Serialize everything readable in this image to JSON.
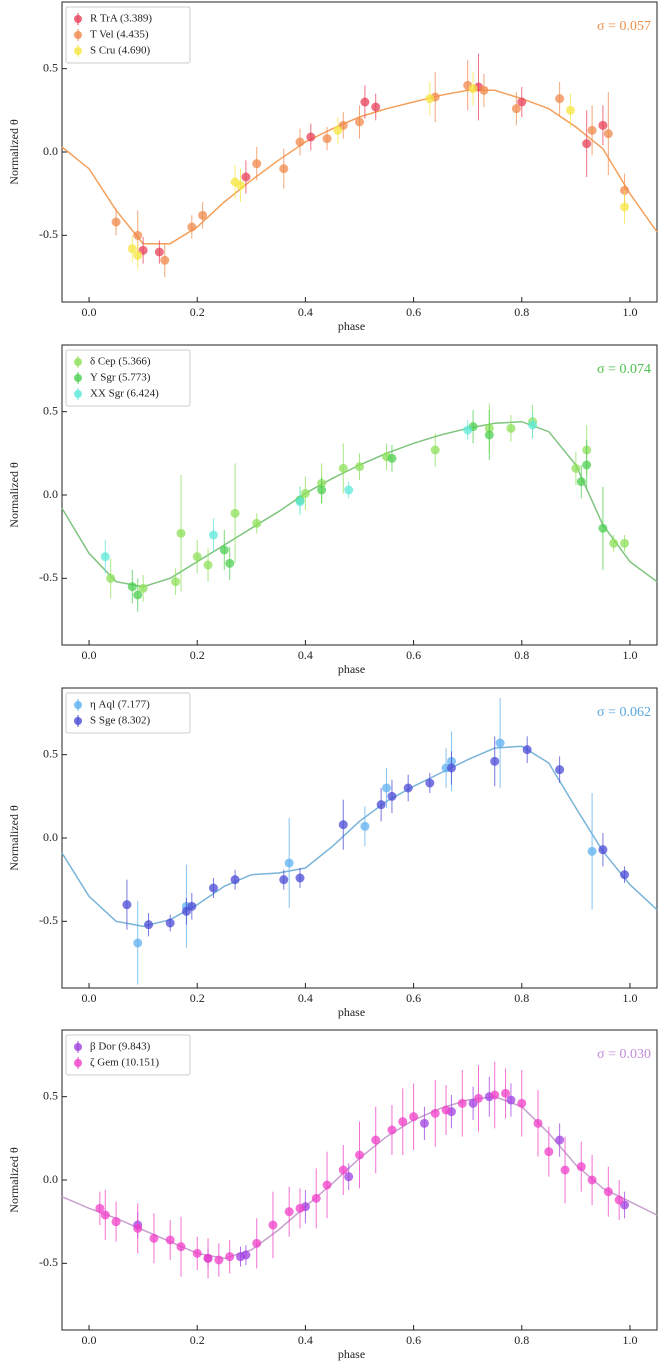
{
  "chart_data": [
    {
      "type": "scatter",
      "xlabel": "phase",
      "ylabel": "Normalized θ",
      "annotation": "σ = 0.057",
      "annotation_color": "#f0904a",
      "legend": "upper left",
      "xlim": [
        -0.05,
        1.05
      ],
      "ylim": [
        -0.9,
        0.9
      ],
      "xticks": [
        {
          "value": 0,
          "label": "0.0"
        },
        0.2,
        0.4,
        0.6,
        0.8,
        {
          "value": 1,
          "label": "1.0"
        }
      ],
      "yticks": [
        -0.5,
        {
          "value": 0,
          "label": "0.0"
        },
        0.5
      ],
      "fit": {
        "color": "#f5a05a",
        "x": [
          -0.05,
          0,
          0.05,
          0.1,
          0.15,
          0.2,
          0.25,
          0.3,
          0.35,
          0.4,
          0.45,
          0.5,
          0.55,
          0.6,
          0.65,
          0.7,
          0.75,
          0.8,
          0.85,
          0.9,
          0.95,
          1.0,
          1.05
        ],
        "values": [
          0.03,
          -0.1,
          -0.35,
          -0.55,
          -0.55,
          -0.45,
          -0.3,
          -0.17,
          -0.05,
          0.06,
          0.14,
          0.21,
          0.26,
          0.3,
          0.34,
          0.37,
          0.37,
          0.32,
          0.26,
          0.15,
          0.02,
          -0.25,
          -0.48
        ]
      },
      "series": [
        {
          "name": "R TrA (3.389)",
          "color": "#e8415a",
          "x": [
            0.1,
            0.13,
            0.29,
            0.41,
            0.51,
            0.53,
            0.72,
            0.8,
            0.92,
            0.95
          ],
          "values": [
            -0.59,
            -0.6,
            -0.15,
            0.09,
            0.3,
            0.27,
            0.39,
            0.3,
            0.05,
            0.16
          ],
          "errors": [
            0.08,
            0.07,
            0.1,
            0.08,
            0.1,
            0.08,
            0.2,
            0.09,
            0.2,
            0.12
          ]
        },
        {
          "name": "T Vel (4.435)",
          "color": "#f08a4b",
          "x": [
            0.05,
            0.09,
            0.14,
            0.19,
            0.21,
            0.31,
            0.36,
            0.39,
            0.44,
            0.47,
            0.5,
            0.64,
            0.7,
            0.73,
            0.79,
            0.87,
            0.93,
            0.96,
            0.99
          ],
          "values": [
            -0.42,
            -0.5,
            -0.65,
            -0.45,
            -0.38,
            -0.07,
            -0.1,
            0.06,
            0.08,
            0.16,
            0.18,
            0.33,
            0.4,
            0.37,
            0.26,
            0.32,
            0.13,
            0.11,
            -0.23
          ],
          "errors": [
            0.08,
            0.15,
            0.1,
            0.07,
            0.08,
            0.1,
            0.12,
            0.08,
            0.07,
            0.08,
            0.1,
            0.15,
            0.15,
            0.1,
            0.1,
            0.1,
            0.15,
            0.25,
            0.1
          ]
        },
        {
          "name": "S Cru (4.690)",
          "color": "#f5e642",
          "x": [
            0.08,
            0.09,
            0.27,
            0.28,
            0.46,
            0.63,
            0.71,
            0.89,
            0.99
          ],
          "values": [
            -0.58,
            -0.62,
            -0.18,
            -0.2,
            0.13,
            0.32,
            0.38,
            0.25,
            -0.33
          ],
          "errors": [
            0.08,
            0.08,
            0.1,
            0.1,
            0.08,
            0.1,
            0.1,
            0.1,
            0.1
          ]
        }
      ]
    },
    {
      "type": "scatter",
      "xlabel": "phase",
      "ylabel": "Normalized θ",
      "annotation": "σ = 0.074",
      "annotation_color": "#4cbf4c",
      "legend": "upper left",
      "xlim": [
        -0.05,
        1.05
      ],
      "ylim": [
        -0.9,
        0.9
      ],
      "xticks": [
        {
          "value": 0,
          "label": "0.0"
        },
        0.2,
        0.4,
        0.6,
        0.8,
        {
          "value": 1,
          "label": "1.0"
        }
      ],
      "yticks": [
        -0.5,
        {
          "value": 0,
          "label": "0.0"
        },
        0.5
      ],
      "fit": {
        "color": "#7fc47f",
        "x": [
          -0.05,
          0,
          0.05,
          0.1,
          0.15,
          0.2,
          0.25,
          0.3,
          0.35,
          0.4,
          0.45,
          0.5,
          0.55,
          0.6,
          0.65,
          0.7,
          0.75,
          0.8,
          0.85,
          0.9,
          0.95,
          1.0,
          1.05
        ],
        "values": [
          -0.08,
          -0.35,
          -0.52,
          -0.55,
          -0.5,
          -0.4,
          -0.3,
          -0.2,
          -0.1,
          0.01,
          0.1,
          0.18,
          0.25,
          0.31,
          0.36,
          0.4,
          0.43,
          0.44,
          0.38,
          0.18,
          -0.18,
          -0.4,
          -0.52
        ]
      },
      "series": [
        {
          "name": "δ Cep (5.366)",
          "color": "#8ee05a",
          "x": [
            0.04,
            0.1,
            0.16,
            0.17,
            0.2,
            0.22,
            0.27,
            0.31,
            0.4,
            0.43,
            0.47,
            0.5,
            0.55,
            0.64,
            0.74,
            0.78,
            0.82,
            0.9,
            0.92,
            0.97,
            0.99
          ],
          "values": [
            -0.5,
            -0.56,
            -0.52,
            -0.23,
            -0.37,
            -0.42,
            -0.11,
            -0.17,
            0.01,
            0.07,
            0.16,
            0.17,
            0.23,
            0.27,
            0.4,
            0.4,
            0.44,
            0.16,
            0.27,
            -0.29,
            -0.29
          ],
          "errors": [
            0.12,
            0.08,
            0.08,
            0.35,
            0.1,
            0.1,
            0.3,
            0.06,
            0.1,
            0.12,
            0.15,
            0.08,
            0.08,
            0.1,
            0.15,
            0.08,
            0.1,
            0.1,
            0.15,
            0.05,
            0.05
          ]
        },
        {
          "name": "Y Sgr (5.773)",
          "color": "#4ecf50",
          "x": [
            0.08,
            0.09,
            0.25,
            0.26,
            0.39,
            0.43,
            0.56,
            0.71,
            0.74,
            0.91,
            0.92,
            0.95
          ],
          "values": [
            -0.55,
            -0.6,
            -0.33,
            -0.41,
            -0.03,
            0.03,
            0.22,
            0.41,
            0.36,
            0.08,
            0.18,
            -0.2
          ],
          "errors": [
            0.1,
            0.1,
            0.12,
            0.1,
            0.08,
            0.08,
            0.08,
            0.1,
            0.15,
            0.1,
            0.15,
            0.25
          ]
        },
        {
          "name": "XX Sgr (6.424)",
          "color": "#5ee8d8",
          "x": [
            0.03,
            0.23,
            0.39,
            0.48,
            0.7,
            0.82
          ],
          "values": [
            -0.37,
            -0.24,
            -0.04,
            0.03,
            0.39,
            0.42
          ],
          "errors": [
            0.1,
            0.1,
            0.08,
            0.05,
            0.06,
            0.08
          ]
        }
      ]
    },
    {
      "type": "scatter",
      "xlabel": "phase",
      "ylabel": "Normalized θ",
      "annotation": "σ = 0.062",
      "annotation_color": "#5ca8e0",
      "legend": "upper left",
      "xlim": [
        -0.05,
        1.05
      ],
      "ylim": [
        -0.9,
        0.9
      ],
      "xticks": [
        {
          "value": 0,
          "label": "0.0"
        },
        0.2,
        0.4,
        0.6,
        0.8,
        {
          "value": 1,
          "label": "1.0"
        }
      ],
      "yticks": [
        -0.5,
        {
          "value": 0,
          "label": "0.0"
        },
        0.5
      ],
      "fit": {
        "color": "#7ab4d8",
        "x": [
          -0.05,
          0,
          0.05,
          0.1,
          0.15,
          0.2,
          0.25,
          0.3,
          0.35,
          0.4,
          0.45,
          0.5,
          0.55,
          0.6,
          0.65,
          0.7,
          0.75,
          0.8,
          0.85,
          0.9,
          0.95,
          1.0,
          1.05
        ],
        "values": [
          -0.09,
          -0.35,
          -0.5,
          -0.53,
          -0.49,
          -0.4,
          -0.29,
          -0.22,
          -0.21,
          -0.18,
          -0.05,
          0.1,
          0.22,
          0.31,
          0.39,
          0.47,
          0.54,
          0.55,
          0.45,
          0.18,
          -0.08,
          -0.28,
          -0.43
        ]
      },
      "series": [
        {
          "name": "η Aql (7.177)",
          "color": "#5eb0f0",
          "x": [
            0.09,
            0.18,
            0.37,
            0.51,
            0.55,
            0.66,
            0.67,
            0.76,
            0.93
          ],
          "values": [
            -0.63,
            -0.41,
            -0.15,
            0.07,
            0.3,
            0.42,
            0.46,
            0.57,
            -0.08
          ],
          "errors": [
            0.25,
            0.25,
            0.27,
            0.12,
            0.12,
            0.12,
            0.18,
            0.27,
            0.35
          ]
        },
        {
          "name": "S Sge (8.302)",
          "color": "#4b4bd6",
          "x": [
            0.07,
            0.11,
            0.15,
            0.18,
            0.19,
            0.23,
            0.27,
            0.36,
            0.39,
            0.47,
            0.54,
            0.56,
            0.59,
            0.63,
            0.67,
            0.75,
            0.81,
            0.87,
            0.95,
            0.99
          ],
          "values": [
            -0.4,
            -0.52,
            -0.51,
            -0.44,
            -0.41,
            -0.3,
            -0.25,
            -0.25,
            -0.24,
            0.08,
            0.2,
            0.25,
            0.3,
            0.33,
            0.42,
            0.46,
            0.53,
            0.41,
            -0.07,
            -0.22
          ],
          "errors": [
            0.15,
            0.07,
            0.05,
            0.08,
            0.08,
            0.06,
            0.06,
            0.06,
            0.06,
            0.15,
            0.1,
            0.1,
            0.08,
            0.06,
            0.1,
            0.15,
            0.08,
            0.08,
            0.1,
            0.05
          ]
        }
      ]
    },
    {
      "type": "scatter",
      "xlabel": "phase",
      "ylabel": "Normalized θ",
      "annotation": "σ = 0.030",
      "annotation_color": "#c08cd8",
      "legend": "upper left",
      "xlim": [
        -0.05,
        1.05
      ],
      "ylim": [
        -0.9,
        0.9
      ],
      "xticks": [
        {
          "value": 0,
          "label": "0.0"
        },
        0.2,
        0.4,
        0.6,
        0.8,
        {
          "value": 1,
          "label": "1.0"
        }
      ],
      "yticks": [
        -0.5,
        {
          "value": 0,
          "label": "0.0"
        },
        0.5
      ],
      "fit": {
        "color": "#c8a0d0",
        "x": [
          -0.05,
          0,
          0.05,
          0.1,
          0.15,
          0.2,
          0.25,
          0.3,
          0.35,
          0.4,
          0.45,
          0.5,
          0.55,
          0.6,
          0.65,
          0.7,
          0.75,
          0.8,
          0.85,
          0.9,
          0.95,
          1.0,
          1.05
        ],
        "values": [
          -0.1,
          -0.17,
          -0.23,
          -0.3,
          -0.37,
          -0.44,
          -0.47,
          -0.42,
          -0.3,
          -0.16,
          -0.02,
          0.13,
          0.26,
          0.36,
          0.43,
          0.48,
          0.5,
          0.44,
          0.28,
          0.09,
          -0.05,
          -0.13,
          -0.21
        ]
      },
      "series": [
        {
          "name": "β Dor (9.843)",
          "color": "#a040e0",
          "x": [
            0.09,
            0.22,
            0.28,
            0.29,
            0.4,
            0.48,
            0.62,
            0.67,
            0.71,
            0.74,
            0.78,
            0.87,
            0.99
          ],
          "values": [
            -0.27,
            -0.47,
            -0.46,
            -0.45,
            -0.16,
            0.02,
            0.34,
            0.41,
            0.46,
            0.5,
            0.48,
            0.24,
            -0.15
          ],
          "errors": [
            0.08,
            0.06,
            0.06,
            0.06,
            0.1,
            0.08,
            0.1,
            0.1,
            0.1,
            0.12,
            0.1,
            0.1,
            0.08
          ]
        },
        {
          "name": "ζ Gem (10.151)",
          "color": "#f040c8",
          "x": [
            0.02,
            0.03,
            0.05,
            0.09,
            0.12,
            0.15,
            0.17,
            0.2,
            0.22,
            0.24,
            0.26,
            0.31,
            0.34,
            0.37,
            0.39,
            0.42,
            0.44,
            0.47,
            0.5,
            0.53,
            0.56,
            0.58,
            0.6,
            0.64,
            0.66,
            0.69,
            0.72,
            0.75,
            0.77,
            0.8,
            0.83,
            0.85,
            0.88,
            0.91,
            0.93,
            0.96,
            0.98
          ],
          "values": [
            -0.17,
            -0.21,
            -0.25,
            -0.29,
            -0.35,
            -0.36,
            -0.4,
            -0.44,
            -0.47,
            -0.48,
            -0.46,
            -0.38,
            -0.27,
            -0.19,
            -0.17,
            -0.11,
            -0.03,
            0.06,
            0.15,
            0.24,
            0.3,
            0.35,
            0.38,
            0.4,
            0.42,
            0.46,
            0.49,
            0.51,
            0.52,
            0.46,
            0.34,
            0.17,
            0.06,
            0.08,
            0.0,
            -0.07,
            -0.12
          ],
          "errors": [
            0.1,
            0.15,
            0.12,
            0.15,
            0.15,
            0.12,
            0.18,
            0.1,
            0.12,
            0.1,
            0.1,
            0.15,
            0.2,
            0.15,
            0.12,
            0.18,
            0.2,
            0.15,
            0.2,
            0.2,
            0.15,
            0.2,
            0.2,
            0.2,
            0.15,
            0.2,
            0.2,
            0.2,
            0.15,
            0.2,
            0.2,
            0.15,
            0.2,
            0.15,
            0.15,
            0.15,
            0.12
          ]
        }
      ]
    }
  ]
}
